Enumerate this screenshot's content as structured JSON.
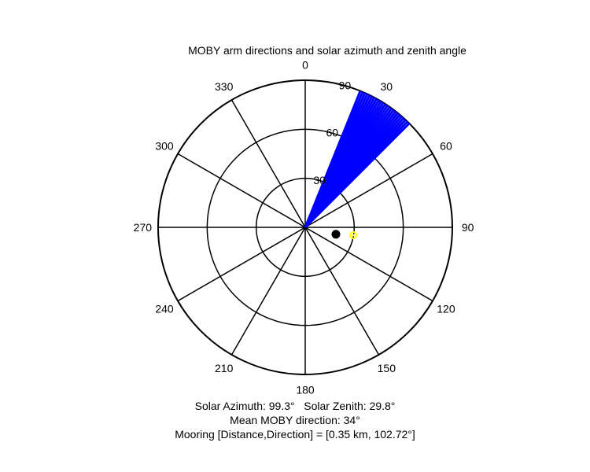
{
  "chart_data": {
    "type": "polar",
    "title": "MOBY arm directions and solar azimuth and zenith angle",
    "angle_ticks": [
      "0",
      "30",
      "60",
      "90",
      "120",
      "150",
      "180",
      "210",
      "240",
      "270",
      "300",
      "330"
    ],
    "radial_ticks": [
      "30",
      "60",
      "90"
    ],
    "r_max": 90,
    "angle_direction": "clockwise",
    "zero_at": "top",
    "arm_directions_deg": [
      22,
      23,
      24,
      25,
      26,
      27,
      28,
      29,
      30,
      31,
      32,
      33,
      34,
      35,
      36,
      37,
      38,
      39,
      40,
      41,
      42,
      43,
      44,
      45
    ],
    "solar": {
      "azimuth_deg": 99.3,
      "zenith_deg": 29.8
    },
    "mooring": {
      "distance_km": 0.35,
      "direction_deg": 102.72
    },
    "colors": {
      "arms": "#0000ff",
      "sun": "#ffff00",
      "mooring": "#000000",
      "axes": "#000000"
    }
  },
  "captions": {
    "solar_line": "Solar Azimuth: 99.3°   Solar Zenith: 29.8°",
    "moby_line": "Mean MOBY direction: 34°",
    "mooring_line": "Mooring [Distance,Direction] = [0.35 km, 102.72°]"
  }
}
